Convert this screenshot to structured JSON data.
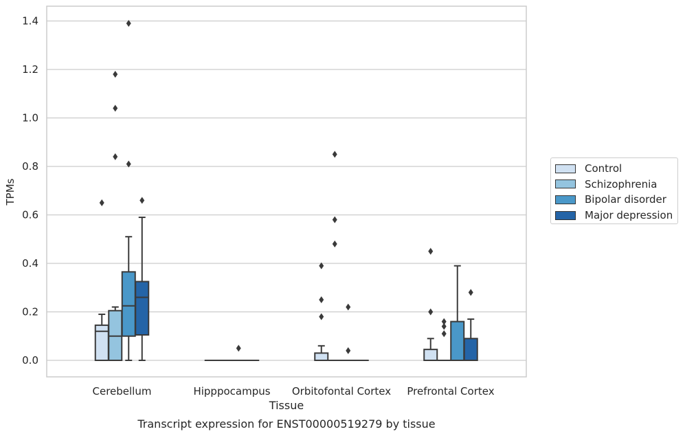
{
  "chart_data": {
    "type": "box",
    "title": "Transcript expression for ENST00000519279 by tissue",
    "xlabel": "Tissue",
    "ylabel": "TPMs",
    "ylim": [
      -0.065,
      1.46
    ],
    "yticks": [
      "0.0",
      "0.2",
      "0.4",
      "0.6",
      "0.8",
      "1.0",
      "1.2",
      "1.4"
    ],
    "categories": [
      "Cerebellum",
      "Hipppocampus",
      "Orbitofontal Cortex",
      "Prefrontal Cortex"
    ],
    "grid": "horizontal",
    "legend_position": "right",
    "series": [
      {
        "name": "Control",
        "color": "#d0e1f2",
        "boxes": [
          {
            "whislo": 0.0,
            "q1": 0.0,
            "med": 0.12,
            "q3": 0.145,
            "whishi": 0.19,
            "fliers": [
              0.65
            ]
          },
          {
            "whislo": 0.0,
            "q1": 0.0,
            "med": 0.0,
            "q3": 0.0,
            "whishi": 0.0,
            "fliers": []
          },
          {
            "whislo": 0.0,
            "q1": 0.0,
            "med": 0.0,
            "q3": 0.03,
            "whishi": 0.06,
            "fliers": [
              0.18,
              0.25,
              0.39
            ]
          },
          {
            "whislo": 0.0,
            "q1": 0.0,
            "med": 0.0,
            "q3": 0.045,
            "whishi": 0.09,
            "fliers": [
              0.2,
              0.45
            ]
          }
        ]
      },
      {
        "name": "Schizophrenia",
        "color": "#94c4df",
        "boxes": [
          {
            "whislo": 0.0,
            "q1": 0.0,
            "med": 0.1,
            "q3": 0.205,
            "whishi": 0.22,
            "fliers": [
              0.84,
              1.04,
              1.18
            ]
          },
          {
            "whislo": 0.0,
            "q1": 0.0,
            "med": 0.0,
            "q3": 0.0,
            "whishi": 0.0,
            "fliers": []
          },
          {
            "whislo": 0.0,
            "q1": 0.0,
            "med": 0.0,
            "q3": 0.0,
            "whishi": 0.0,
            "fliers": [
              0.48,
              0.58,
              0.85
            ]
          },
          {
            "whislo": 0.0,
            "q1": 0.0,
            "med": 0.0,
            "q3": 0.0,
            "whishi": 0.0,
            "fliers": [
              0.11,
              0.14,
              0.16
            ]
          }
        ]
      },
      {
        "name": "Bipolar disorder",
        "color": "#4a98c9",
        "boxes": [
          {
            "whislo": 0.0,
            "q1": 0.1,
            "med": 0.225,
            "q3": 0.365,
            "whishi": 0.51,
            "fliers": [
              0.81,
              1.39
            ]
          },
          {
            "whislo": 0.0,
            "q1": 0.0,
            "med": 0.0,
            "q3": 0.0,
            "whishi": 0.0,
            "fliers": [
              0.05
            ]
          },
          {
            "whislo": 0.0,
            "q1": 0.0,
            "med": 0.0,
            "q3": 0.0,
            "whishi": 0.0,
            "fliers": [
              0.04,
              0.22
            ]
          },
          {
            "whislo": 0.0,
            "q1": 0.0,
            "med": 0.0,
            "q3": 0.16,
            "whishi": 0.39,
            "fliers": []
          }
        ]
      },
      {
        "name": "Major depression",
        "color": "#2464a7",
        "boxes": [
          {
            "whislo": 0.0,
            "q1": 0.105,
            "med": 0.26,
            "q3": 0.325,
            "whishi": 0.59,
            "fliers": [
              0.66
            ]
          },
          {
            "whislo": 0.0,
            "q1": 0.0,
            "med": 0.0,
            "q3": 0.0,
            "whishi": 0.0,
            "fliers": []
          },
          {
            "whislo": 0.0,
            "q1": 0.0,
            "med": 0.0,
            "q3": 0.0,
            "whishi": 0.0,
            "fliers": []
          },
          {
            "whislo": 0.0,
            "q1": 0.0,
            "med": 0.0,
            "q3": 0.09,
            "whishi": 0.17,
            "fliers": [
              0.28
            ]
          }
        ]
      }
    ]
  }
}
